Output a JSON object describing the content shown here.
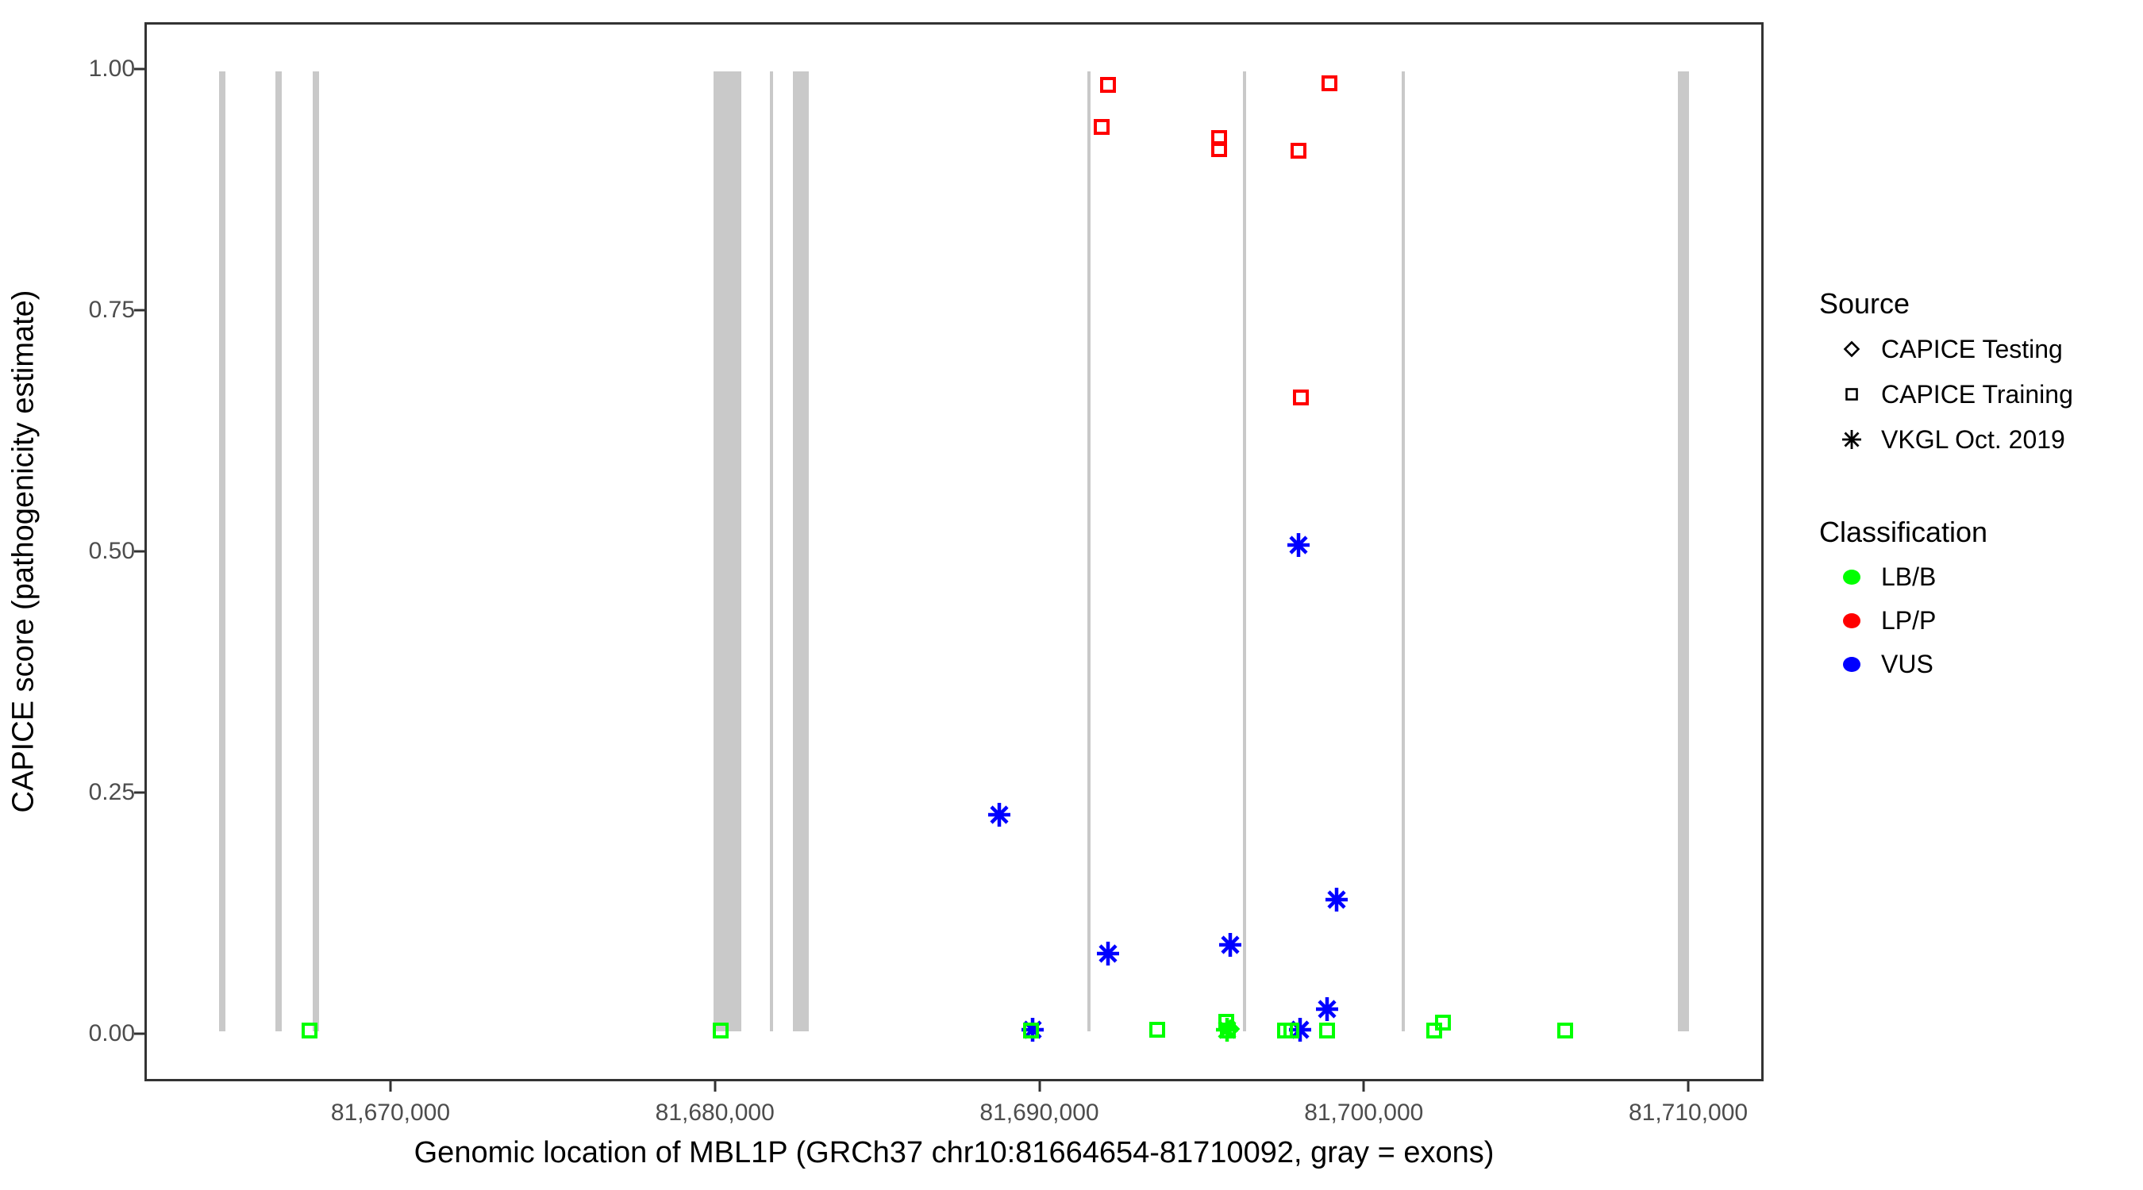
{
  "figure": {
    "x_axis_title": "Genomic location of MBL1P (GRCh37 chr10:81664654-81710092, gray = exons)",
    "y_axis_title": "CAPICE score (pathogenicity estimate)",
    "x_tick_labels": [
      "81,670,000",
      "81,680,000",
      "81,690,000",
      "81,700,000",
      "81,710,000"
    ],
    "y_tick_labels": [
      "0.00",
      "0.25",
      "0.50",
      "0.75",
      "1.00"
    ]
  },
  "legend": {
    "source": {
      "title": "Source",
      "items": [
        {
          "label": "CAPICE Testing",
          "shape": "diamond"
        },
        {
          "label": "CAPICE Training",
          "shape": "square"
        },
        {
          "label": "VKGL Oct. 2019",
          "shape": "asterisk"
        }
      ]
    },
    "classification": {
      "title": "Classification",
      "items": [
        {
          "label": "LB/B",
          "color": "#00FF00"
        },
        {
          "label": "LP/P",
          "color": "#FF0000"
        },
        {
          "label": "VUS",
          "color": "#0000FF"
        }
      ]
    }
  },
  "chart_data": {
    "type": "scatter",
    "title": "",
    "xlabel": "Genomic location of MBL1P (GRCh37 chr10:81664654-81710092, gray = exons)",
    "ylabel": "CAPICE score (pathogenicity estimate)",
    "axis": {
      "x_min": 81662417,
      "x_max": 81712323,
      "y_min": -0.0493,
      "y_max": 1.0485,
      "x_ticks": [
        81670000,
        81680000,
        81690000,
        81700000,
        81710000
      ],
      "y_ticks": [
        0.0,
        0.25,
        0.5,
        0.75,
        1.0
      ],
      "grid": false,
      "legend_position": "right"
    },
    "exon_color": "#C9C9C9",
    "exons": [
      {
        "start": 81664650,
        "end": 81664840
      },
      {
        "start": 81666400,
        "end": 81666600
      },
      {
        "start": 81667550,
        "end": 81667750
      },
      {
        "start": 81679930,
        "end": 81680790
      },
      {
        "start": 81681670,
        "end": 81681770
      },
      {
        "start": 81682400,
        "end": 81682870
      },
      {
        "start": 81691500,
        "end": 81691600
      },
      {
        "start": 81696300,
        "end": 81696400
      },
      {
        "start": 81701200,
        "end": 81701300
      },
      {
        "start": 81709750,
        "end": 81710090
      }
    ],
    "points": [
      {
        "x": 81691945,
        "y": 0.942,
        "source": "CAPICE Training",
        "classification": "LP/P"
      },
      {
        "x": 81692141,
        "y": 0.986,
        "source": "CAPICE Training",
        "classification": "LP/P"
      },
      {
        "x": 81695566,
        "y": 0.93,
        "source": "CAPICE Training",
        "classification": "LP/P"
      },
      {
        "x": 81695566,
        "y": 0.919,
        "source": "CAPICE Training",
        "classification": "LP/P"
      },
      {
        "x": 81698012,
        "y": 0.917,
        "source": "CAPICE Training",
        "classification": "LP/P"
      },
      {
        "x": 81698100,
        "y": 0.66,
        "source": "CAPICE Training",
        "classification": "LP/P"
      },
      {
        "x": 81698967,
        "y": 0.987,
        "source": "CAPICE Training",
        "classification": "LP/P"
      },
      {
        "x": 81688764,
        "y": 0.226,
        "source": "VKGL Oct. 2019",
        "classification": "VUS"
      },
      {
        "x": 81692141,
        "y": 0.081,
        "source": "VKGL Oct. 2019",
        "classification": "VUS"
      },
      {
        "x": 81695908,
        "y": 0.09,
        "source": "VKGL Oct. 2019",
        "classification": "VUS"
      },
      {
        "x": 81698012,
        "y": 0.507,
        "source": "VKGL Oct. 2019",
        "classification": "VUS"
      },
      {
        "x": 81699186,
        "y": 0.137,
        "source": "VKGL Oct. 2019",
        "classification": "VUS"
      },
      {
        "x": 81698893,
        "y": 0.023,
        "source": "VKGL Oct. 2019",
        "classification": "VUS"
      },
      {
        "x": 81689800,
        "y": 0.002,
        "source": "VKGL Oct. 2019",
        "classification": "VUS"
      },
      {
        "x": 81698061,
        "y": 0.002,
        "source": "VKGL Oct. 2019",
        "classification": "VUS"
      },
      {
        "x": 81695810,
        "y": 0.002,
        "source": "VKGL Oct. 2019",
        "classification": "LB/B"
      },
      {
        "x": 81695900,
        "y": 0.003,
        "source": "CAPICE Testing",
        "classification": "LB/B"
      },
      {
        "x": 81667456,
        "y": 0.001,
        "source": "CAPICE Training",
        "classification": "LB/B"
      },
      {
        "x": 81680153,
        "y": 0.001,
        "source": "CAPICE Training",
        "classification": "LB/B"
      },
      {
        "x": 81689740,
        "y": 0.001,
        "source": "CAPICE Training",
        "classification": "LB/B"
      },
      {
        "x": 81693657,
        "y": 0.002,
        "source": "CAPICE Training",
        "classification": "LB/B"
      },
      {
        "x": 81695780,
        "y": 0.01,
        "source": "CAPICE Training",
        "classification": "LB/B"
      },
      {
        "x": 81695840,
        "y": 0.001,
        "source": "CAPICE Training",
        "classification": "LB/B"
      },
      {
        "x": 81697596,
        "y": 0.001,
        "source": "CAPICE Training",
        "classification": "LB/B"
      },
      {
        "x": 81697792,
        "y": 0.001,
        "source": "CAPICE Training",
        "classification": "LB/B"
      },
      {
        "x": 81698893,
        "y": 0.001,
        "source": "CAPICE Training",
        "classification": "LB/B"
      },
      {
        "x": 81702220,
        "y": 0.001,
        "source": "CAPICE Training",
        "classification": "LB/B"
      },
      {
        "x": 81702489,
        "y": 0.009,
        "source": "CAPICE Training",
        "classification": "LB/B"
      },
      {
        "x": 81706256,
        "y": 0.001,
        "source": "CAPICE Training",
        "classification": "LB/B"
      }
    ],
    "classification_colors": {
      "LB/B": "#00FF00",
      "LP/P": "#FF0000",
      "VUS": "#0000FF"
    }
  }
}
